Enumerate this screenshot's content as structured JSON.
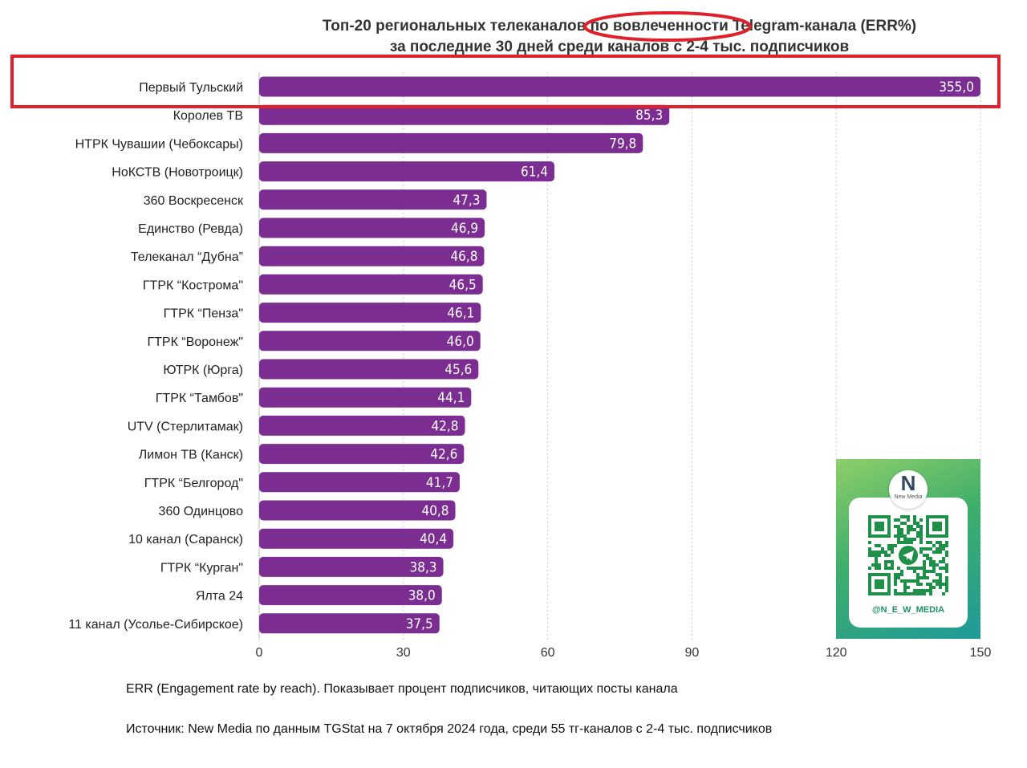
{
  "chart_data": {
    "type": "bar",
    "orientation": "horizontal",
    "title": "Топ-20 региональных телеканалов по вовлеченности Telegram-канала (ERR%)",
    "subtitle": "за последние 30 дней среди каналов с 2-4 тыс. подписчиков",
    "xlabel": "",
    "ylabel": "",
    "xlim": [
      0,
      150
    ],
    "xticks": [
      0,
      30,
      60,
      90,
      120,
      150
    ],
    "grid": true,
    "categories": [
      "Первый Тульский",
      "Королев ТВ",
      "НТРК Чувашии (Чебоксары)",
      "НоКСТВ (Новотроицк)",
      "360 Воскресенск",
      "Единство (Ревда)",
      "Телеканал “Дубна”",
      "ГТРК “Кострома\"",
      "ГТРК “Пенза\"",
      "ГТРК “Воронеж\"",
      "ЮТРК (Юрга)",
      "ГТРК “Тамбов\"",
      "UTV (Стерлитамак)",
      "Лимон ТВ (Канск)",
      "ГТРК “Белгород\"",
      "360 Одинцово",
      "10 канал (Саранск)",
      "ГТРК “Курган\"",
      "Ялта 24",
      "11 канал (Усолье-Сибирское)"
    ],
    "values": [
      355.0,
      85.3,
      79.8,
      61.4,
      47.3,
      46.9,
      46.8,
      46.5,
      46.1,
      46.0,
      45.6,
      44.1,
      42.8,
      42.6,
      41.7,
      40.8,
      40.4,
      38.3,
      38.0,
      37.5
    ],
    "value_labels": [
      "355,0",
      "85,3",
      "79,8",
      "61,4",
      "47,3",
      "46,9",
      "46,8",
      "46,5",
      "46,1",
      "46,0",
      "45,6",
      "44,1",
      "42,8",
      "42,6",
      "41,7",
      "40,8",
      "40,4",
      "38,3",
      "38,0",
      "37,5"
    ],
    "truncated_bar_note": "first bar exceeds axis (355,0) and is drawn to the axis end",
    "bar_color": "#7b2d92",
    "highlight": {
      "row_box_color": "#e0202a",
      "title_oval_color": "#e0202a"
    }
  },
  "notes": {
    "err": "ERR (Engagement rate by reach). Показывает процент подписчиков, читающих посты канала",
    "source": "Источник: New Media по данным TGStat на 7 октября 2024 года, среди 55 тг-каналов с 2-4 тыс. подписчиков"
  },
  "qr_card": {
    "logo_mark": "N",
    "logo_text": "New Media",
    "handle": "@N_E_W_MEDIA",
    "icon": "telegram-icon",
    "colors": {
      "gradient_start": "#8fcf6a",
      "gradient_end": "#1f9a9a",
      "qr": "#1f8f4a"
    }
  }
}
